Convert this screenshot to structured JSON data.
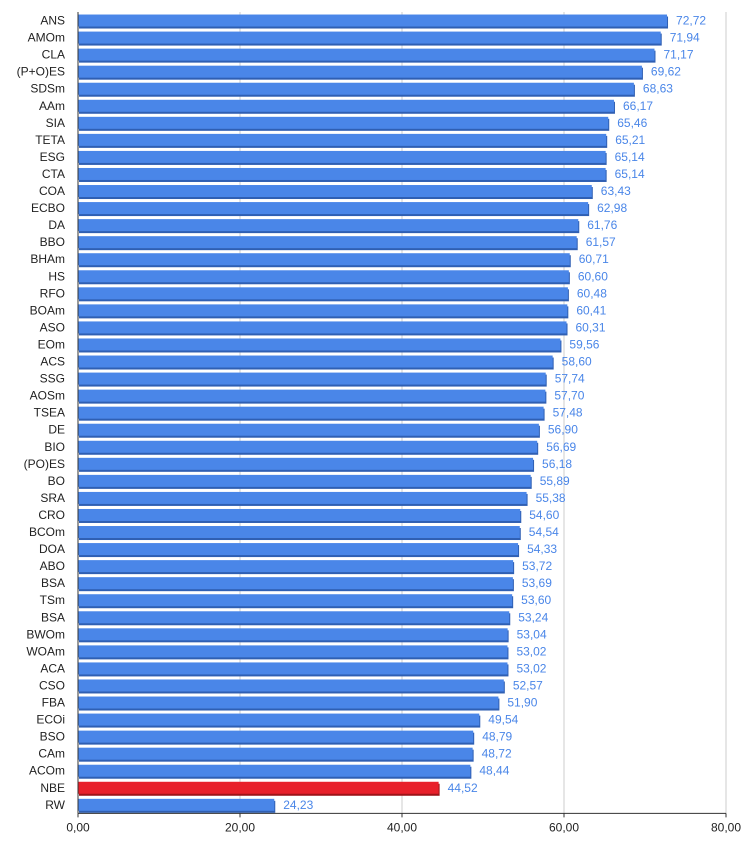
{
  "chart_data": {
    "type": "bar",
    "orientation": "horizontal",
    "categories": [
      "ANS",
      "AMOm",
      "CLA",
      "(P+O)ES",
      "SDSm",
      "AAm",
      "SIA",
      "TETA",
      "ESG",
      "CTA",
      "COA",
      "ECBO",
      "DA",
      "BBO",
      "BHAm",
      "HS",
      "RFO",
      "BOAm",
      "ASO",
      "EOm",
      "ACS",
      "SSG",
      "AOSm",
      "TSEA",
      "DE",
      "BIO",
      "(PO)ES",
      "BO",
      "SRA",
      "CRO",
      "BCOm",
      "DOA",
      "ABO",
      "BSA",
      "TSm",
      "BSA",
      "BWOm",
      "WOAm",
      "ACA",
      "CSO",
      "FBA",
      "ECOi",
      "BSO",
      "CAm",
      "ACOm",
      "NBE",
      "RW"
    ],
    "values": [
      72.72,
      71.94,
      71.17,
      69.62,
      68.63,
      66.17,
      65.46,
      65.21,
      65.14,
      65.14,
      63.43,
      62.98,
      61.76,
      61.57,
      60.71,
      60.6,
      60.48,
      60.41,
      60.31,
      59.56,
      58.6,
      57.74,
      57.7,
      57.48,
      56.9,
      56.69,
      56.18,
      55.89,
      55.38,
      54.6,
      54.54,
      54.33,
      53.72,
      53.69,
      53.6,
      53.24,
      53.04,
      53.02,
      53.02,
      52.57,
      51.9,
      49.54,
      48.79,
      48.72,
      48.44,
      44.52,
      24.23
    ],
    "value_labels": [
      "72,72",
      "71,94",
      "71,17",
      "69,62",
      "68,63",
      "66,17",
      "65,46",
      "65,21",
      "65,14",
      "65,14",
      "63,43",
      "62,98",
      "61,76",
      "61,57",
      "60,71",
      "60,60",
      "60,48",
      "60,41",
      "60,31",
      "59,56",
      "58,60",
      "57,74",
      "57,70",
      "57,48",
      "56,90",
      "56,69",
      "56,18",
      "55,89",
      "55,38",
      "54,60",
      "54,54",
      "54,33",
      "53,72",
      "53,69",
      "53,60",
      "53,24",
      "53,04",
      "53,02",
      "53,02",
      "52,57",
      "51,90",
      "49,54",
      "48,79",
      "48,72",
      "48,44",
      "44,52",
      "24,23"
    ],
    "x_ticks": [
      0,
      20,
      40,
      60,
      80
    ],
    "x_tick_labels": [
      "0,00",
      "20,00",
      "40,00",
      "60,00",
      "80,00"
    ],
    "xlim": [
      0,
      80
    ],
    "grid": true,
    "legend": "none",
    "title": "",
    "xlabel": "",
    "ylabel": "",
    "colors": {
      "bar": "#4a86e8",
      "bar_edge": "#2f5fb3",
      "highlight": "#e8202a",
      "highlight_edge": "#9e1418",
      "highlight_category": "NBE",
      "value_label": "#4a86e8",
      "grid": "#cccccc",
      "axis": "#333333"
    }
  }
}
